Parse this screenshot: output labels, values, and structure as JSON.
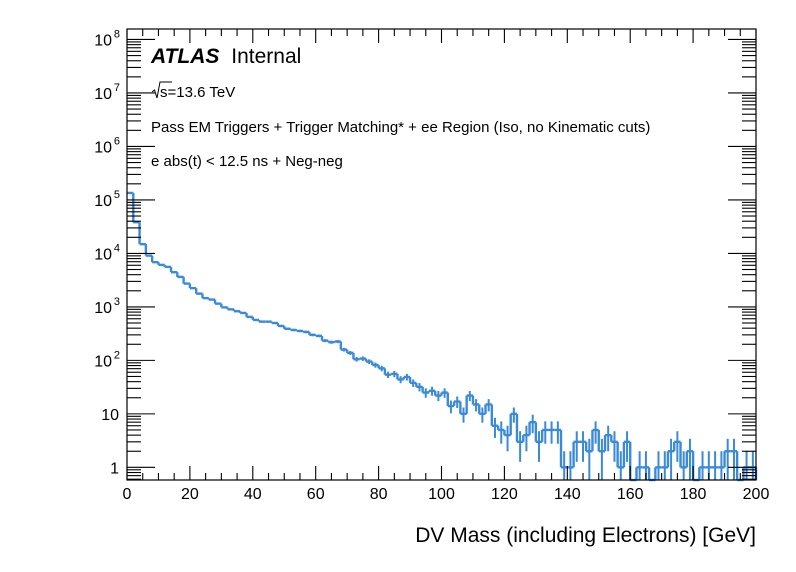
{
  "chart_data": {
    "type": "bar",
    "style": "step-histogram-with-error-bars",
    "xlabel": "DV Mass (including Electrons) [GeV]",
    "ylabel": "",
    "xlim": [
      0,
      200
    ],
    "ylim": [
      0.58,
      157000000
    ],
    "yscale": "log",
    "grid": false,
    "bin_width": 2,
    "line_color": "#3a8ad8",
    "x_ticks": [
      0,
      20,
      40,
      60,
      80,
      100,
      120,
      140,
      160,
      180,
      200
    ],
    "x_tick_labels": [
      "0",
      "20",
      "40",
      "60",
      "80",
      "100",
      "120",
      "140",
      "160",
      "180",
      "200"
    ],
    "y_ticks": [
      {
        "value": 1,
        "base": "1",
        "exp": ""
      },
      {
        "value": 10,
        "base": "10",
        "exp": ""
      },
      {
        "value": 100,
        "base": "10",
        "exp": "2"
      },
      {
        "value": 1000,
        "base": "10",
        "exp": "3"
      },
      {
        "value": 10000,
        "base": "10",
        "exp": "4"
      },
      {
        "value": 100000,
        "base": "10",
        "exp": "5"
      },
      {
        "value": 1000000,
        "base": "10",
        "exp": "6"
      },
      {
        "value": 10000000,
        "base": "10",
        "exp": "7"
      },
      {
        "value": 100000000,
        "base": "10",
        "exp": "8"
      }
    ],
    "annotations": {
      "experiment": "ATLAS",
      "status": "Internal",
      "energy_sqrt": "s",
      "energy_value": "=13.6 TeV",
      "selection_line1": "Pass EM Triggers + Trigger Matching* + ee Region (Iso, no Kinematic cuts)",
      "selection_line2": "e abs(t) < 12.5 ns + Neg-neg"
    },
    "series": [
      {
        "name": "DV mass",
        "bin_edges_start": 0,
        "values": [
          135000,
          38300,
          14900,
          9100,
          6850,
          6100,
          5600,
          4450,
          3640,
          2730,
          2240,
          1770,
          1460,
          1370,
          1150,
          980,
          900,
          830,
          770,
          650,
          570,
          530,
          530,
          500,
          440,
          390,
          370,
          355,
          340,
          300,
          287,
          234,
          219,
          225,
          159,
          138,
          105,
          108,
          95,
          82,
          71,
          54,
          56,
          44,
          49,
          38,
          32,
          25,
          27,
          22,
          25,
          14,
          17,
          10,
          22,
          15,
          10,
          15,
          6,
          5,
          4,
          10,
          3,
          4,
          7,
          3,
          5,
          5,
          5,
          1,
          1,
          3,
          3,
          2,
          5,
          2,
          4,
          3,
          1,
          3,
          0,
          1,
          1,
          0,
          1,
          1,
          2,
          3,
          1,
          2,
          0,
          1,
          1,
          1,
          1,
          2,
          2,
          0,
          1,
          1
        ]
      }
    ]
  }
}
